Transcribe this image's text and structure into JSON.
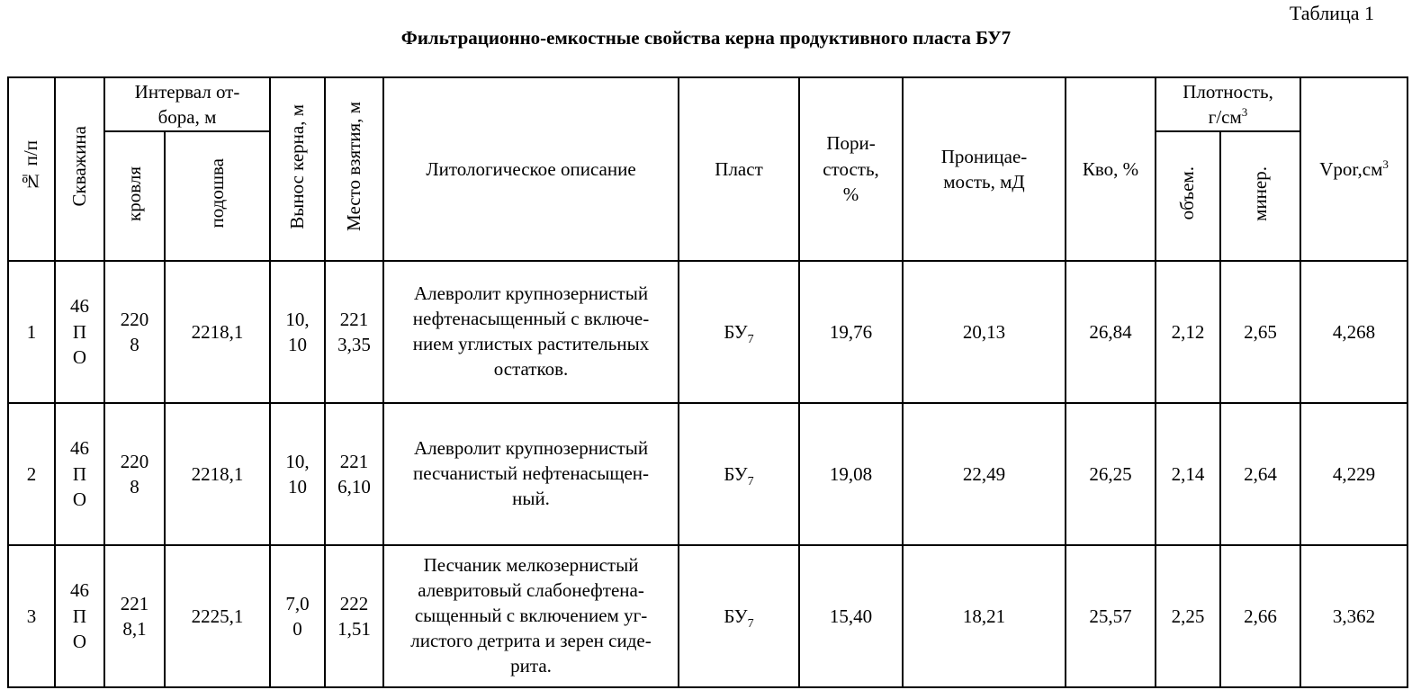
{
  "table_number": "Таблица 1",
  "title": "Фильтрационно-емкостные свойства керна продуктивного пласта БУ7",
  "headers": {
    "num": "№ п/п",
    "well": "Скважина",
    "interval_l1": "Интервал от-",
    "interval_l2": "бора, м",
    "top": "кровля",
    "bottom": "подошва",
    "recovery": "Вынос керна, м",
    "location": "Место взятия, м",
    "lithology": "Литологическое описание",
    "formation": "Пласт",
    "porosity_l1": "Пори-",
    "porosity_l2": "стость,",
    "porosity_l3": "%",
    "perm_l1": "Проницае-",
    "perm_l2": "мость, мД",
    "kvo": "Кво, %",
    "density_l1": "Плотность,",
    "density_l2": "г/см",
    "density_sup": "3",
    "bulk": "объем.",
    "mineral": "минер.",
    "vpor": "Vpor,см",
    "vpor_sup": "3"
  },
  "rows": [
    {
      "num": "1",
      "well": [
        "46",
        "П",
        "О"
      ],
      "top": [
        "220",
        "8"
      ],
      "bottom": "2218,1",
      "recovery": [
        "10,",
        "10"
      ],
      "location": [
        "221",
        "3,35"
      ],
      "lithology": [
        "Алевролит крупнозернистый",
        "нефтенасыщенный с включе-",
        "нием углистых растительных",
        "остатков."
      ],
      "formation": "БУ",
      "formation_sub": "7",
      "porosity": "19,76",
      "permeability": "20,13",
      "kvo": "26,84",
      "bulk": "2,12",
      "mineral": "2,65",
      "vpor": "4,268"
    },
    {
      "num": "2",
      "well": [
        "46",
        "П",
        "О"
      ],
      "top": [
        "220",
        "8"
      ],
      "bottom": "2218,1",
      "recovery": [
        "10,",
        "10"
      ],
      "location": [
        "221",
        "6,10"
      ],
      "lithology": [
        "Алевролит крупнозернистый",
        "песчанистый нефтенасыщен-",
        "ный."
      ],
      "formation": "БУ",
      "formation_sub": "7",
      "porosity": "19,08",
      "permeability": "22,49",
      "kvo": "26,25",
      "bulk": "2,14",
      "mineral": "2,64",
      "vpor": "4,229"
    },
    {
      "num": "3",
      "well": [
        "46",
        "П",
        "О"
      ],
      "top": [
        "221",
        "8,1"
      ],
      "bottom": "2225,1",
      "recovery": [
        "7,0",
        "0"
      ],
      "location": [
        "222",
        "1,51"
      ],
      "lithology": [
        "Песчаник мелкозернистый",
        "алевритовый слабонефтена-",
        "сыщенный с включением уг-",
        "листого детрита и зерен сиде-",
        "рита."
      ],
      "formation": "БУ",
      "formation_sub": "7",
      "porosity": "15,40",
      "permeability": "18,21",
      "kvo": "25,57",
      "bulk": "2,25",
      "mineral": "2,66",
      "vpor": "3,362"
    }
  ]
}
